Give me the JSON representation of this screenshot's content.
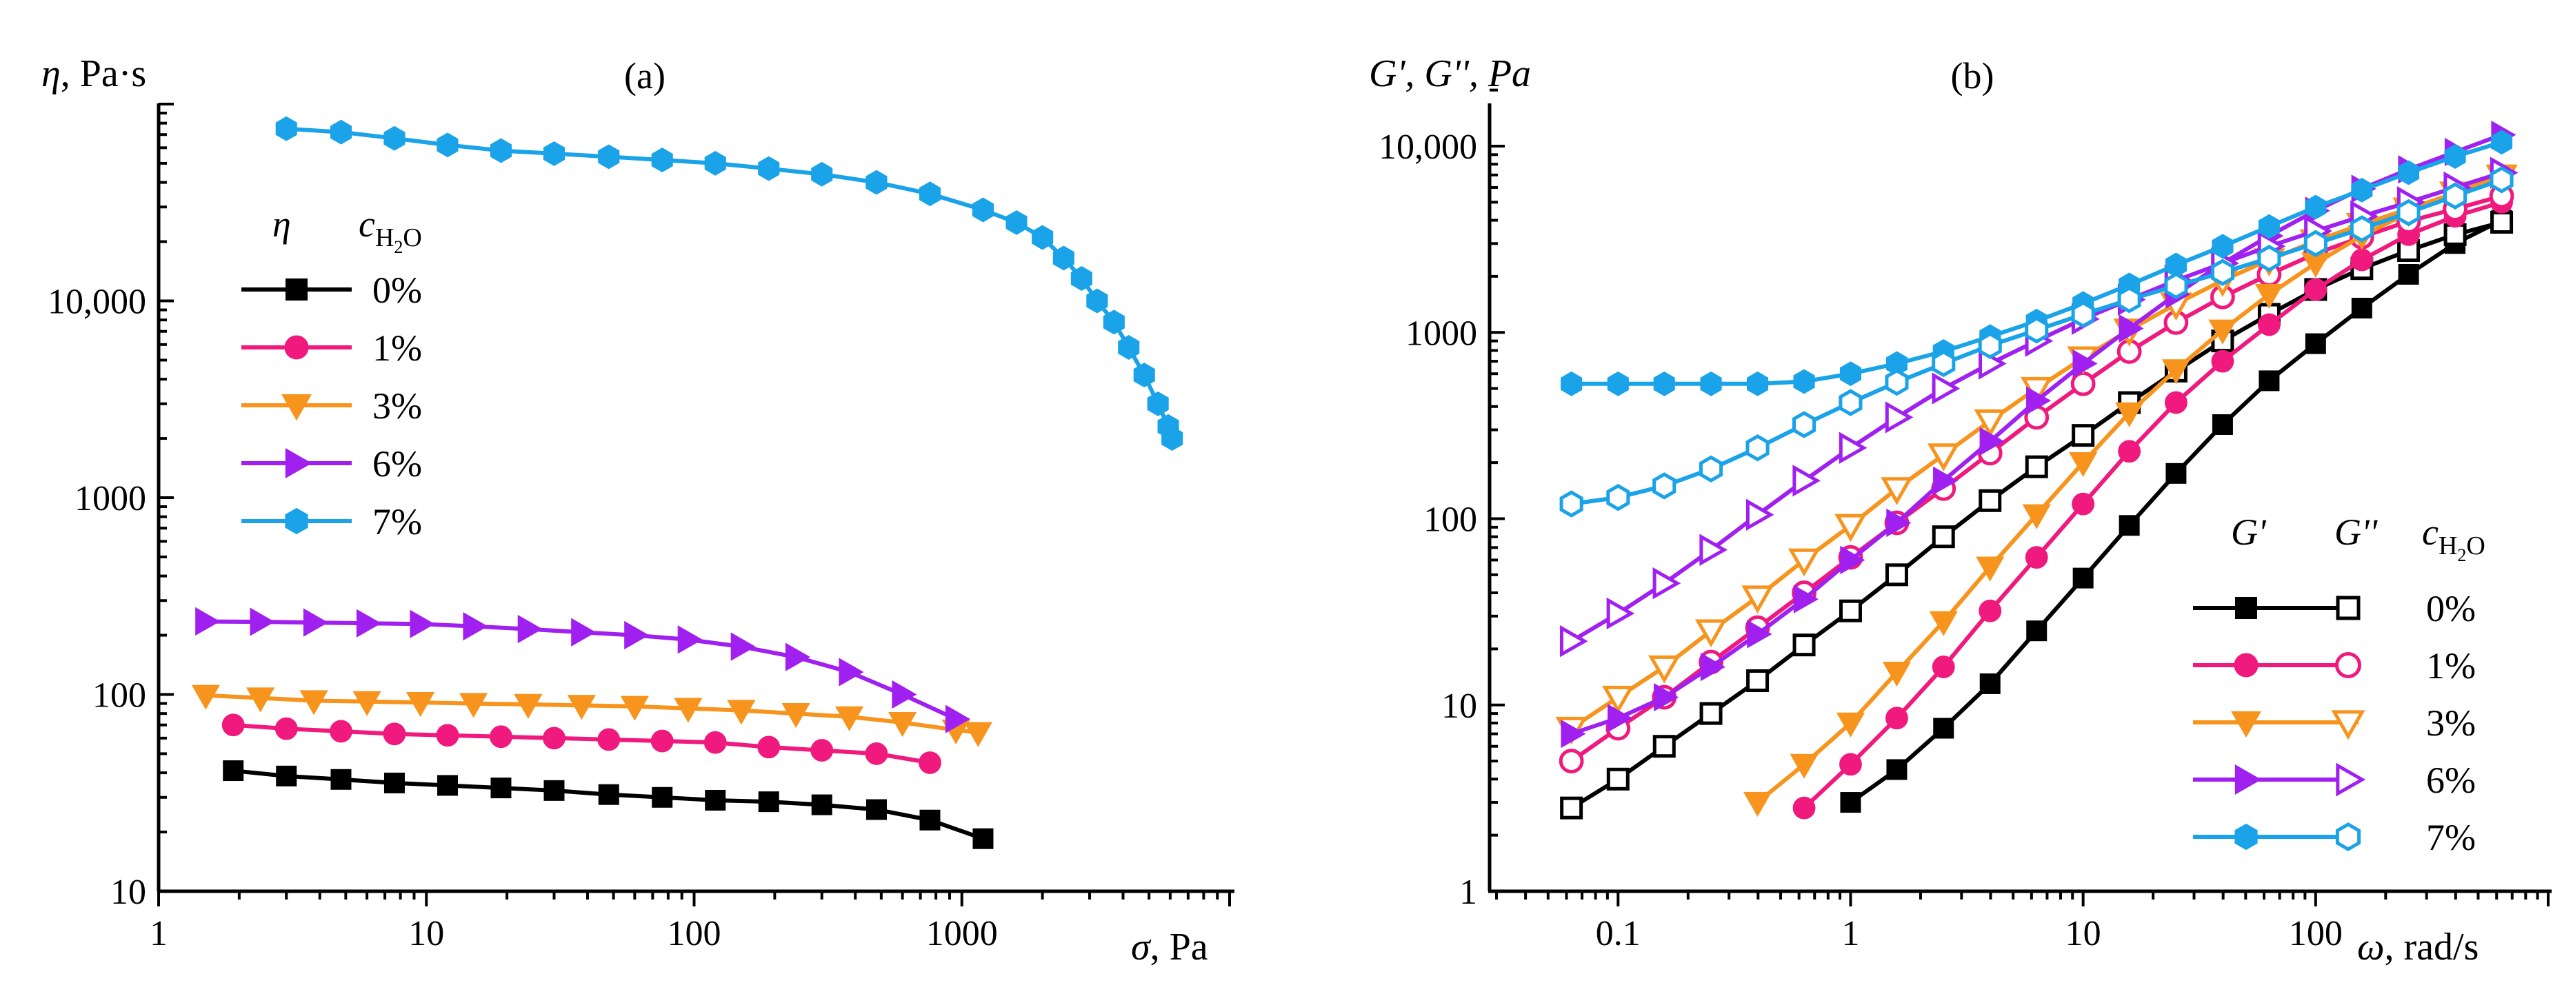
{
  "chart_data": [
    {
      "panel": "(a)",
      "type": "line",
      "title": "(a)",
      "ylabel_symbol": "η",
      "ylabel_unit": ", Pa·s",
      "xlabel_symbol": "σ",
      "xlabel_unit": ", Pa",
      "xscale": "log",
      "yscale": "log",
      "xlim": [
        1,
        10000
      ],
      "ylim": [
        10,
        100000
      ],
      "x_ticks": [
        1,
        10,
        100,
        1000
      ],
      "x_tick_labels": [
        "1",
        "10",
        "100",
        "1000"
      ],
      "y_ticks": [
        10,
        100,
        1000,
        10000
      ],
      "y_tick_labels": [
        "10",
        "100",
        "1000",
        "10,000"
      ],
      "legend_header_symbol": "η",
      "legend_header_var": "c",
      "legend_header_sub": "H",
      "legend_header_sub2": "2",
      "legend_header_sub3": "O",
      "legend_position": "upper-left",
      "series": [
        {
          "name": "0%",
          "color": "#000000",
          "marker": "square",
          "x": [
            1.9,
            3.0,
            4.8,
            7.6,
            12,
            19,
            30,
            48,
            76,
            120,
            190,
            300,
            480,
            760,
            1200
          ],
          "y": [
            41,
            38.5,
            37,
            35.5,
            34.5,
            33.5,
            32.5,
            31,
            30,
            29,
            28.5,
            27.5,
            26,
            23,
            18.5
          ]
        },
        {
          "name": "1%",
          "color": "#f0197d",
          "marker": "circle",
          "x": [
            1.9,
            3.0,
            4.8,
            7.6,
            12,
            19,
            30,
            48,
            76,
            120,
            190,
            300,
            480,
            760
          ],
          "y": [
            70,
            67,
            65,
            63,
            62,
            61,
            60,
            59,
            58,
            57,
            54,
            52,
            50,
            45
          ]
        },
        {
          "name": "3%",
          "color": "#f7941d",
          "marker": "triangle-down",
          "x": [
            1.5,
            2.4,
            3.8,
            6,
            9.5,
            15,
            24,
            38,
            60,
            95,
            150,
            240,
            380,
            600,
            950,
            1150
          ],
          "y": [
            99,
            96,
            93,
            92,
            91,
            90,
            89,
            88,
            87,
            85,
            83,
            80,
            77,
            72,
            66,
            64
          ]
        },
        {
          "name": "6%",
          "color": "#a020f0",
          "marker": "triangle-right",
          "x": [
            1.5,
            2.4,
            3.8,
            6,
            9.5,
            15,
            24,
            38,
            60,
            95,
            150,
            240,
            380,
            600,
            950
          ],
          "y": [
            235,
            234,
            232,
            230,
            228,
            222,
            215,
            207,
            200,
            190,
            175,
            155,
            130,
            100,
            75
          ]
        },
        {
          "name": "7%",
          "color": "#1aa3e8",
          "marker": "hexagon",
          "x": [
            3,
            4.8,
            7.6,
            12,
            19,
            30,
            48,
            76,
            120,
            190,
            300,
            480,
            760,
            1200,
            1600,
            2000,
            2400,
            2800,
            3200,
            3700,
            4200,
            4800,
            5400,
            5900,
            6100
          ],
          "y": [
            75000,
            72000,
            67000,
            62000,
            58000,
            56000,
            54000,
            52000,
            50000,
            47000,
            44000,
            40000,
            35000,
            29000,
            25000,
            21000,
            16500,
            13000,
            10000,
            7800,
            5800,
            4200,
            3000,
            2300,
            2000
          ]
        }
      ]
    },
    {
      "panel": "(b)",
      "type": "line",
      "title": "(b)",
      "ylabel": "G', G'', Pa",
      "xlabel_symbol": "ω",
      "xlabel_unit": ", rad/s",
      "xscale": "log",
      "yscale": "log",
      "xlim": [
        0.03,
        1000
      ],
      "ylim": [
        1,
        20000
      ],
      "x_ticks": [
        0.1,
        1,
        10,
        100
      ],
      "x_tick_labels": [
        "0.1",
        "1",
        "10",
        "100"
      ],
      "y_ticks": [
        1,
        10,
        100,
        1000,
        10000
      ],
      "y_tick_labels": [
        "1",
        "10",
        "100",
        "1000",
        "10,000"
      ],
      "legend_header_gp": "G'",
      "legend_header_gpp": "G''",
      "legend_header_var": "c",
      "legend_header_sub": "H",
      "legend_header_sub2": "2",
      "legend_header_sub3": "O",
      "legend_position": "lower-right",
      "series": [
        {
          "name": "0%",
          "color": "#000000",
          "marker": "square",
          "modulus": "G'",
          "x": [
            1,
            1.58,
            2.51,
            3.98,
            6.31,
            10,
            15.8,
            25.1,
            39.8,
            63.1,
            100,
            158,
            251,
            398,
            631
          ],
          "y": [
            3,
            4.5,
            7.5,
            13,
            25,
            48,
            92,
            175,
            320,
            550,
            870,
            1350,
            2050,
            3000,
            4000
          ]
        },
        {
          "name": "0%",
          "color": "#000000",
          "marker": "square-open",
          "modulus": "G''",
          "x": [
            0.063,
            0.1,
            0.158,
            0.251,
            0.398,
            0.631,
            1,
            1.58,
            2.51,
            3.98,
            6.31,
            10,
            15.8,
            25.1,
            39.8,
            63.1,
            100,
            158,
            251,
            398,
            631
          ],
          "y": [
            2.8,
            4,
            6,
            9,
            13.5,
            21,
            32,
            50,
            80,
            125,
            190,
            280,
            420,
            620,
            900,
            1250,
            1700,
            2200,
            2750,
            3350,
            3900
          ]
        },
        {
          "name": "1%",
          "color": "#f0197d",
          "marker": "circle",
          "modulus": "G'",
          "x": [
            0.631,
            1,
            1.58,
            2.51,
            3.98,
            6.31,
            10,
            15.8,
            25.1,
            39.8,
            63.1,
            100,
            158,
            251,
            398,
            631
          ],
          "y": [
            2.8,
            4.8,
            8.5,
            16,
            32,
            62,
            120,
            230,
            420,
            700,
            1100,
            1700,
            2450,
            3350,
            4200,
            5000
          ]
        },
        {
          "name": "1%",
          "color": "#f0197d",
          "marker": "circle-open",
          "modulus": "G''",
          "x": [
            0.063,
            0.1,
            0.158,
            0.251,
            0.398,
            0.631,
            1,
            1.58,
            2.51,
            3.98,
            6.31,
            10,
            15.8,
            25.1,
            39.8,
            63.1,
            100,
            158,
            251,
            398,
            631
          ],
          "y": [
            5,
            7.5,
            11,
            17,
            26,
            40,
            62,
            95,
            145,
            225,
            350,
            530,
            790,
            1130,
            1550,
            2050,
            2650,
            3250,
            3950,
            4600,
            5400
          ]
        },
        {
          "name": "3%",
          "color": "#f7941d",
          "marker": "triangle-down",
          "modulus": "G'",
          "x": [
            0.398,
            0.631,
            1,
            1.58,
            2.51,
            3.98,
            6.31,
            10,
            15.8,
            25.1,
            39.8,
            63.1,
            100,
            158,
            251,
            398,
            631
          ],
          "y": [
            3,
            4.8,
            8,
            15,
            28,
            55,
            105,
            200,
            370,
            630,
            1030,
            1600,
            2350,
            3300,
            4400,
            5600,
            7000
          ]
        },
        {
          "name": "3%",
          "color": "#f7941d",
          "marker": "triangle-down-open",
          "modulus": "G''",
          "x": [
            0.063,
            0.1,
            0.158,
            0.251,
            0.398,
            0.631,
            1,
            1.58,
            2.51,
            3.98,
            6.31,
            10,
            15.8,
            25.1,
            39.8,
            63.1,
            100,
            158,
            251,
            398,
            631
          ],
          "y": [
            7.5,
            11,
            16,
            25,
            38,
            60,
            92,
            145,
            220,
            335,
            500,
            730,
            1030,
            1420,
            1900,
            2450,
            3100,
            3800,
            4600,
            5600,
            6900
          ]
        },
        {
          "name": "6%",
          "color": "#a020f0",
          "marker": "triangle-right",
          "modulus": "G'",
          "x": [
            0.063,
            0.1,
            0.158,
            0.251,
            0.398,
            0.631,
            1,
            1.58,
            2.51,
            3.98,
            6.31,
            10,
            15.8,
            25.1,
            39.8,
            63.1,
            100,
            158,
            251,
            398,
            631
          ],
          "y": [
            7,
            8.5,
            11,
            16,
            24,
            37,
            60,
            95,
            160,
            260,
            430,
            680,
            1050,
            1600,
            2350,
            3300,
            4500,
            5900,
            7500,
            9300,
            11500
          ]
        },
        {
          "name": "6%",
          "color": "#a020f0",
          "marker": "triangle-right-open",
          "modulus": "G''",
          "x": [
            0.063,
            0.1,
            0.158,
            0.251,
            0.398,
            0.631,
            1,
            1.58,
            2.51,
            3.98,
            6.31,
            10,
            15.8,
            25.1,
            39.8,
            63.1,
            100,
            158,
            251,
            398,
            631
          ],
          "y": [
            22,
            31,
            45,
            68,
            105,
            160,
            240,
            350,
            500,
            680,
            900,
            1180,
            1500,
            1900,
            2350,
            2900,
            3500,
            4200,
            5000,
            6000,
            7200
          ]
        },
        {
          "name": "7%",
          "color": "#1aa3e8",
          "marker": "hexagon",
          "modulus": "G'",
          "x": [
            0.063,
            0.1,
            0.158,
            0.251,
            0.398,
            0.631,
            1,
            1.58,
            2.51,
            3.98,
            6.31,
            10,
            15.8,
            25.1,
            39.8,
            63.1,
            100,
            158,
            251,
            398,
            631
          ],
          "y": [
            530,
            530,
            530,
            530,
            530,
            545,
            600,
            680,
            790,
            950,
            1150,
            1430,
            1800,
            2300,
            2900,
            3700,
            4700,
            5800,
            7200,
            8800,
            10500
          ]
        },
        {
          "name": "7%",
          "color": "#1aa3e8",
          "marker": "hexagon-open",
          "modulus": "G''",
          "x": [
            0.063,
            0.1,
            0.158,
            0.251,
            0.398,
            0.631,
            1,
            1.58,
            2.51,
            3.98,
            6.31,
            10,
            15.8,
            25.1,
            39.8,
            63.1,
            100,
            158,
            251,
            398,
            631
          ],
          "y": [
            120,
            130,
            150,
            185,
            240,
            320,
            420,
            540,
            680,
            850,
            1030,
            1250,
            1500,
            1780,
            2100,
            2500,
            3000,
            3600,
            4400,
            5400,
            6600
          ]
        }
      ]
    }
  ]
}
